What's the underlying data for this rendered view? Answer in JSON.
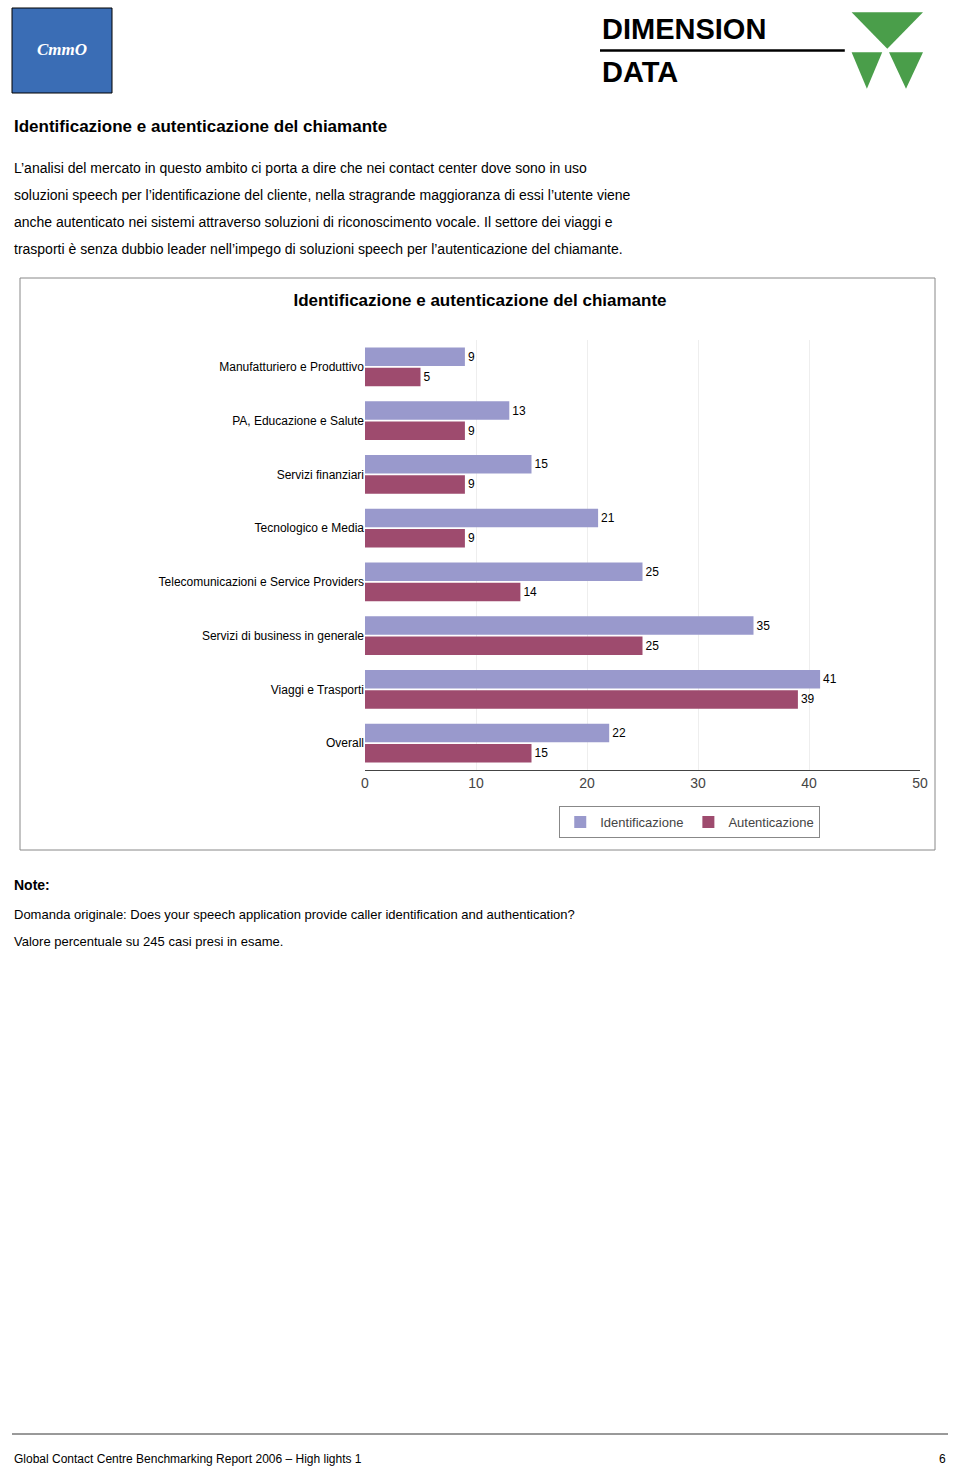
{
  "chart_data": {
    "type": "bar",
    "orientation": "horizontal",
    "title": "Identificazione e autenticazione del chiamante",
    "categories": [
      "Manufatturiero e Produttivo",
      "PA, Educazione e Salute",
      "Servizi finanziari",
      "Tecnologico e Media",
      "Telecomunicazioni e Service Providers",
      "Servizi di business in generale",
      "Viaggi e Trasporti",
      "Overall"
    ],
    "series": [
      {
        "name": "Identificazione",
        "color": "#9999cc",
        "values": [
          9,
          13,
          15,
          21,
          25,
          35,
          41,
          22
        ]
      },
      {
        "name": "Autenticazione",
        "color": "#9e4b6e",
        "values": [
          5,
          9,
          9,
          9,
          14,
          25,
          39,
          15
        ]
      }
    ],
    "xlim": [
      0,
      50
    ],
    "xticks": [
      0,
      10,
      20,
      30,
      40,
      50
    ],
    "grid": true,
    "data_labels": true,
    "legend": "bottom",
    "annotations": [
      "CmmO",
      "DIMENSION",
      "DATA",
      "Identificazione e autenticazione del chiamante",
      "L’analisi del mercato in questo ambito ci porta a dire che nei contact center dove sono in uso",
      "soluzioni speech per l’identificazione del cliente, nella stragrande maggioranza di essi l’utente viene",
      "anche autenticato nei sistemi attraverso soluzioni di riconoscimento vocale. Il settore dei viaggi e",
      "trasporti è senza dubbio leader nell’impego di soluzioni speech per l’autenticazione del chiamante.",
      "Note:",
      "Domanda originale: Does your speech application provide caller identification and authentication?",
      "Valore percentuale su 245 casi presi in esame.",
      "Global Contact Centre Benchmarking Report 2006 – High lights 1",
      "6"
    ]
  }
}
